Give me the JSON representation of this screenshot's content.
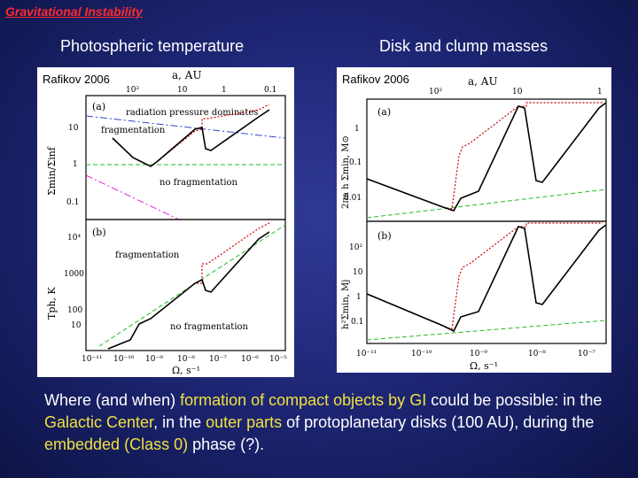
{
  "slide": {
    "title": "Gravitational Instability"
  },
  "left_panel": {
    "heading": "Photospheric temperature",
    "reference": "Rafikov 2006",
    "top_axis_label": "a, AU",
    "top_ticks": [
      "10²",
      "10",
      "1",
      "0.1"
    ],
    "subplot_a": {
      "tag": "(a)",
      "ylabel": "Σmin/Σinf",
      "yticks": [
        "10",
        "1",
        "0.1"
      ],
      "labels": [
        "radiation pressure dominates",
        "fragmentation",
        "no fragmentation"
      ]
    },
    "subplot_b": {
      "tag": "(b)",
      "ylabel": "Tph, K",
      "yticks": [
        "10⁴",
        "1000",
        "100",
        "10"
      ],
      "labels": [
        "fragmentation",
        "no fragmentation"
      ]
    },
    "xticks": [
      "10⁻¹¹",
      "10⁻¹⁰",
      "10⁻⁹",
      "10⁻⁸",
      "10⁻⁷",
      "10⁻⁶",
      "10⁻⁵"
    ],
    "xlabel": "Ω, s⁻¹"
  },
  "right_panel": {
    "heading": "Disk and clump masses",
    "reference": "Rafikov 2006",
    "top_axis_label": "a, AU",
    "top_ticks": [
      "10²",
      "10",
      "1"
    ],
    "subplot_a": {
      "tag": "(a)",
      "ylabel": "2πa h Σmin, M⊙",
      "yticks": [
        "1",
        "0.1",
        "0.01"
      ]
    },
    "subplot_b": {
      "tag": "(b)",
      "ylabel": "h²Σmin, Mj",
      "yticks": [
        "10²",
        "10",
        "1",
        "0.1"
      ]
    },
    "xticks": [
      "10⁻¹¹",
      "10⁻¹⁰",
      "10⁻⁹",
      "10⁻⁸",
      "10⁻⁷"
    ],
    "xlabel": "Ω, s⁻¹"
  },
  "caption": {
    "p1": "Where (and when) ",
    "h1": "formation of compact objects by GI",
    "p2": " could be possible: in the ",
    "h2": "Galactic Center",
    "p3": ", in the ",
    "h3": "outer parts",
    "p4": " of protoplanetary disks (100 AU), during the ",
    "h4": "embedded (Class 0)",
    "p5": " phase (?)."
  },
  "colors": {
    "title": "#ff2a2a",
    "highlight": "#f0e040",
    "curve_solid": "#000000",
    "curve_dotted": "#cc0000",
    "dashed_green": "#22bb22",
    "dash_blue": "#3344cc",
    "dash_magenta": "#dd22dd"
  }
}
